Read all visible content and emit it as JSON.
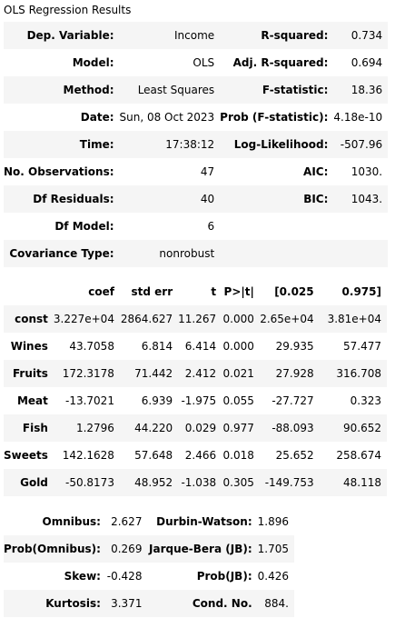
{
  "caption": "OLS Regression Results",
  "top_table": {
    "rows": [
      {
        "l_label": "Dep. Variable:",
        "l_value": "Income",
        "r_label": "R-squared:",
        "r_value": "0.734"
      },
      {
        "l_label": "Model:",
        "l_value": "OLS",
        "r_label": "Adj. R-squared:",
        "r_value": "0.694"
      },
      {
        "l_label": "Method:",
        "l_value": "Least Squares",
        "r_label": "F-statistic:",
        "r_value": "18.36"
      },
      {
        "l_label": "Date:",
        "l_value": "Sun, 08 Oct 2023",
        "r_label": "Prob (F-statistic):",
        "r_value": "4.18e-10"
      },
      {
        "l_label": "Time:",
        "l_value": "17:38:12",
        "r_label": "Log-Likelihood:",
        "r_value": "-507.96"
      },
      {
        "l_label": "No. Observations:",
        "l_value": "47",
        "r_label": "AIC:",
        "r_value": "1030."
      },
      {
        "l_label": "Df Residuals:",
        "l_value": "40",
        "r_label": "BIC:",
        "r_value": "1043."
      },
      {
        "l_label": "Df Model:",
        "l_value": "6",
        "r_label": "",
        "r_value": ""
      },
      {
        "l_label": "Covariance Type:",
        "l_value": "nonrobust",
        "r_label": "",
        "r_value": ""
      }
    ]
  },
  "coef_table": {
    "headers": [
      "",
      "coef",
      "std err",
      "t",
      "P>|t|",
      "[0.025",
      "0.975]"
    ],
    "rows": [
      {
        "name": "const",
        "coef": "3.227e+04",
        "std_err": "2864.627",
        "t": "11.267",
        "p": "0.000",
        "lo": "2.65e+04",
        "hi": "3.81e+04"
      },
      {
        "name": "Wines",
        "coef": "43.7058",
        "std_err": "6.814",
        "t": "6.414",
        "p": "0.000",
        "lo": "29.935",
        "hi": "57.477"
      },
      {
        "name": "Fruits",
        "coef": "172.3178",
        "std_err": "71.442",
        "t": "2.412",
        "p": "0.021",
        "lo": "27.928",
        "hi": "316.708"
      },
      {
        "name": "Meat",
        "coef": "-13.7021",
        "std_err": "6.939",
        "t": "-1.975",
        "p": "0.055",
        "lo": "-27.727",
        "hi": "0.323"
      },
      {
        "name": "Fish",
        "coef": "1.2796",
        "std_err": "44.220",
        "t": "0.029",
        "p": "0.977",
        "lo": "-88.093",
        "hi": "90.652"
      },
      {
        "name": "Sweets",
        "coef": "142.1628",
        "std_err": "57.648",
        "t": "2.466",
        "p": "0.018",
        "lo": "25.652",
        "hi": "258.674"
      },
      {
        "name": "Gold",
        "coef": "-50.8173",
        "std_err": "48.952",
        "t": "-1.038",
        "p": "0.305",
        "lo": "-149.753",
        "hi": "48.118"
      }
    ]
  },
  "diag_table": {
    "rows": [
      {
        "l_label": "Omnibus:",
        "l_value": "2.627",
        "r_label": "Durbin-Watson:",
        "r_value": "1.896"
      },
      {
        "l_label": "Prob(Omnibus):",
        "l_value": "0.269",
        "r_label": "Jarque-Bera (JB):",
        "r_value": "1.705"
      },
      {
        "l_label": "Skew:",
        "l_value": "-0.428",
        "r_label": "Prob(JB):",
        "r_value": "0.426"
      },
      {
        "l_label": "Kurtosis:",
        "l_value": "3.371",
        "r_label": "Cond. No.",
        "r_value": "884."
      }
    ]
  }
}
